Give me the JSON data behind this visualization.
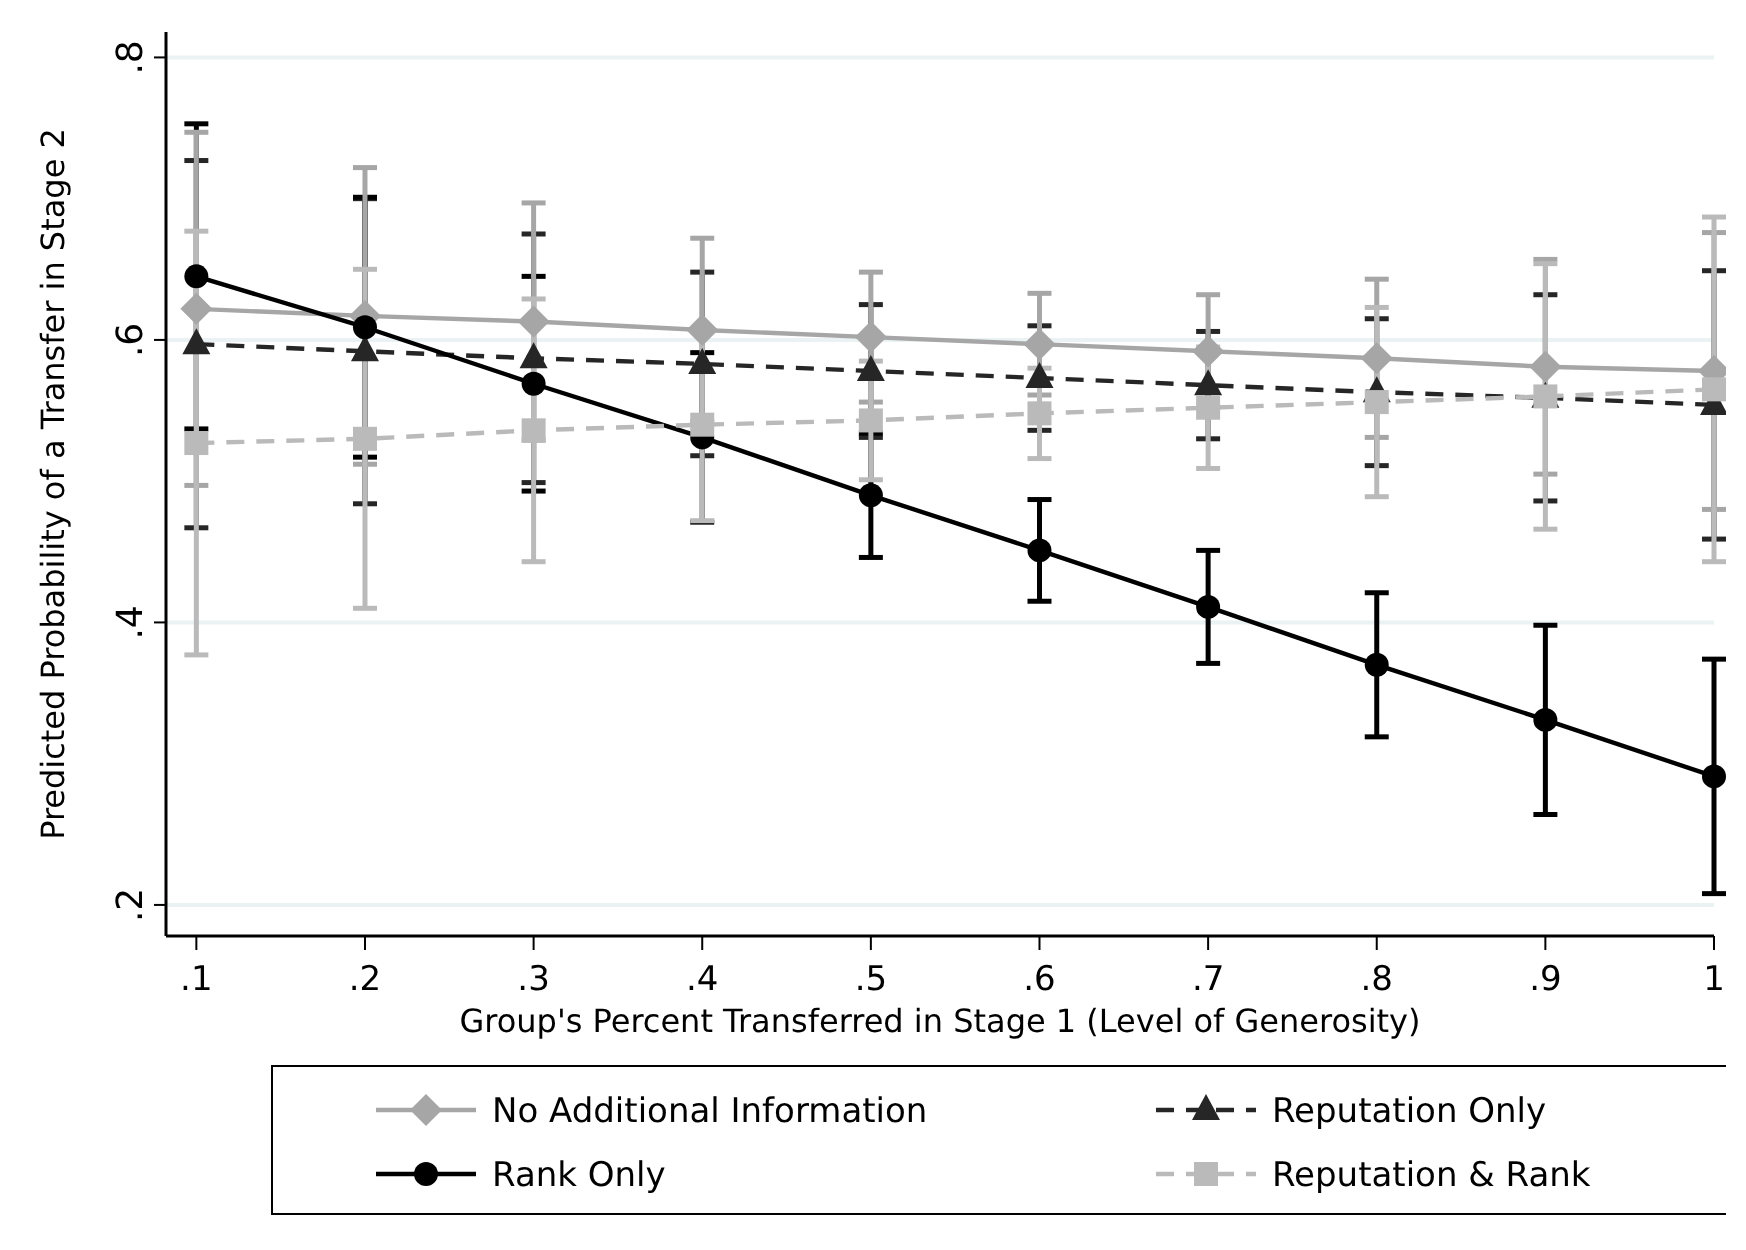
{
  "chart_data": {
    "type": "line",
    "xlabel": "Group's Percent Transferred in Stage 1 (Level of Generosity)",
    "ylabel": "Predicted Probability of a Transfer in Stage 2",
    "x": [
      0.1,
      0.2,
      0.3,
      0.4,
      0.5,
      0.6,
      0.7,
      0.8,
      0.9,
      1
    ],
    "xlim": [
      0.082,
      1.0
    ],
    "xticks": [
      {
        "value": 0.1,
        "label": ".1"
      },
      {
        "value": 0.2,
        "label": ".2"
      },
      {
        "value": 0.3,
        "label": ".3"
      },
      {
        "value": 0.4,
        "label": ".4"
      },
      {
        "value": 0.5,
        "label": ".5"
      },
      {
        "value": 0.6,
        "label": ".6"
      },
      {
        "value": 0.7,
        "label": ".7"
      },
      {
        "value": 0.8,
        "label": ".8"
      },
      {
        "value": 0.9,
        "label": ".9"
      },
      1
    ],
    "ylim": [
      0.178,
      0.818
    ],
    "yticks": [
      {
        "value": 0.2,
        "label": ".2"
      },
      {
        "value": 0.4,
        "label": ".4"
      },
      {
        "value": 0.6,
        "label": ".6"
      },
      {
        "value": 0.8,
        "label": ".8"
      }
    ],
    "grid": "y",
    "legend": "bottom",
    "series": [
      {
        "name": "No Additional Information",
        "color": "#a6a6a6",
        "marker": "diamond",
        "line_style": "solid",
        "values": [
          0.622,
          0.617,
          0.613,
          0.607,
          0.602,
          0.597,
          0.592,
          0.587,
          0.581,
          0.578
        ],
        "errors": [
          0.125,
          0.105,
          0.084,
          0.065,
          0.046,
          0.036,
          0.04,
          0.056,
          0.076,
          0.098
        ]
      },
      {
        "name": "Reputation Only",
        "color": "#262626",
        "marker": "triangle",
        "line_style": "dashed",
        "values": [
          0.597,
          0.592,
          0.587,
          0.583,
          0.578,
          0.573,
          0.568,
          0.563,
          0.559,
          0.554
        ],
        "errors": [
          0.13,
          0.108,
          0.088,
          0.065,
          0.047,
          0.037,
          0.038,
          0.052,
          0.073,
          0.095
        ]
      },
      {
        "name": "Rank Only",
        "color": "#000000",
        "marker": "circle",
        "line_style": "solid",
        "values": [
          0.645,
          0.609,
          0.569,
          0.531,
          0.49,
          0.451,
          0.411,
          0.37,
          0.331,
          0.291
        ],
        "errors": [
          0.108,
          0.092,
          0.076,
          0.06,
          0.044,
          0.036,
          0.04,
          0.051,
          0.067,
          0.083
        ]
      },
      {
        "name": "Reputation & Rank",
        "color": "#bababa",
        "marker": "square",
        "line_style": "dashed",
        "values": [
          0.527,
          0.53,
          0.536,
          0.54,
          0.543,
          0.548,
          0.552,
          0.556,
          0.56,
          0.565
        ],
        "errors": [
          0.15,
          0.12,
          0.093,
          0.068,
          0.042,
          0.032,
          0.043,
          0.067,
          0.094,
          0.122
        ]
      }
    ]
  }
}
